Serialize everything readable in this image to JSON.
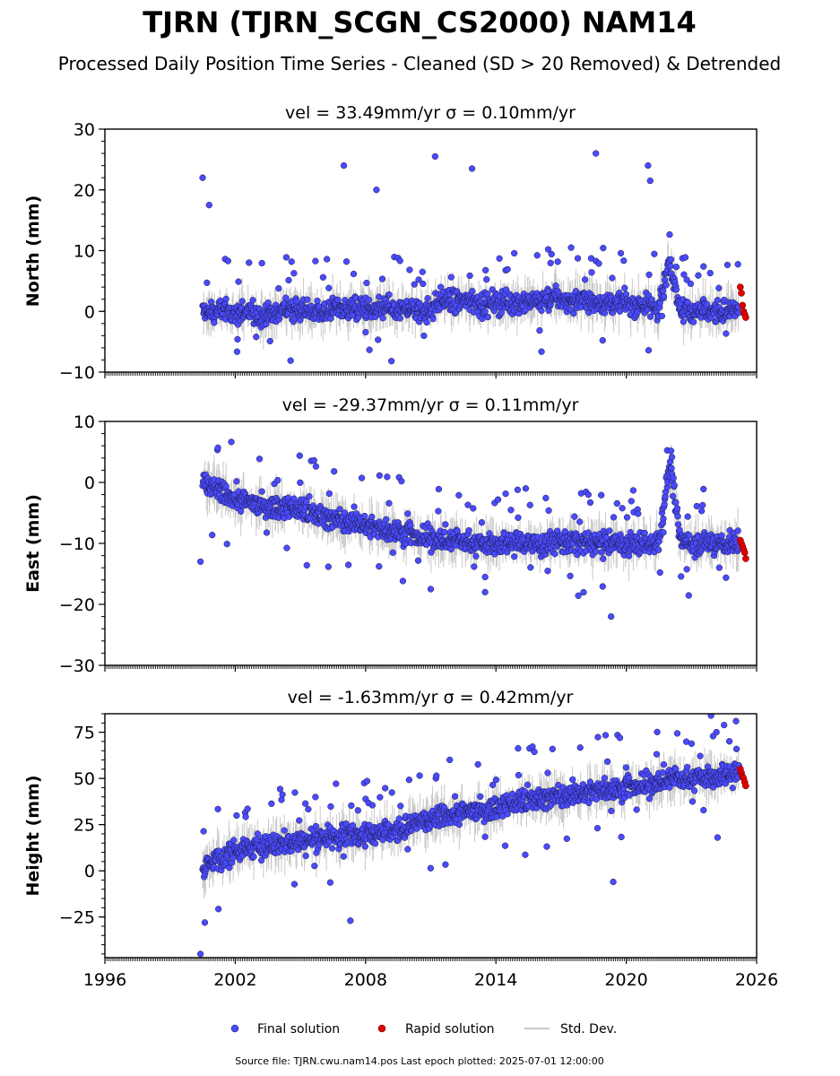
{
  "figure": {
    "title": "TJRN (TJRN_SCGN_CS2000) NAM14",
    "subtitle": "Processed Daily Position Time Series - Cleaned (SD > 20 Removed) & Detrended",
    "source_note": "Source file: TJRN.cwu.nam14.pos  Last epoch plotted: 2025-07-01 12:00:00"
  },
  "legend": {
    "placement": "bottom-center",
    "items": [
      {
        "label": "Final solution",
        "marker": "circle",
        "color": "#4a4aff"
      },
      {
        "label": "Rapid solution",
        "marker": "circle",
        "color": "#e00000"
      },
      {
        "label": "Std. Dev.",
        "marker": "line",
        "color": "#c8c8c8"
      }
    ]
  },
  "colors": {
    "final": "#4a4aff",
    "rapid": "#e00000",
    "stddev": "#c8c8c8",
    "edge": "#1a1a40"
  },
  "chart_data": [
    {
      "type": "scatter",
      "title": "vel = 33.49mm/yr   σ = 0.10mm/yr",
      "ylabel": "North (mm)",
      "xlim": [
        1996,
        2026
      ],
      "ylim": [
        -10,
        30
      ],
      "yticks": [
        -10,
        0,
        10,
        20,
        30
      ],
      "xticks": [
        1996,
        2002,
        2008,
        2014,
        2020,
        2026
      ],
      "show_xtick_labels": false,
      "grid": false,
      "series": [
        {
          "name": "Final solution",
          "x": [
            2000.5,
            2001.0,
            2001.5,
            2002.0,
            2002.5,
            2003.0,
            2003.5,
            2004.0,
            2004.5,
            2005.0,
            2005.5,
            2006.0,
            2006.5,
            2007.0,
            2007.5,
            2008.0,
            2008.5,
            2009.0,
            2009.5,
            2010.0,
            2010.5,
            2011.0,
            2011.5,
            2012.0,
            2012.5,
            2013.0,
            2013.5,
            2014.0,
            2014.5,
            2015.0,
            2015.5,
            2016.0,
            2016.5,
            2017.0,
            2017.5,
            2018.0,
            2018.5,
            2019.0,
            2019.5,
            2020.0,
            2020.5,
            2021.0,
            2021.5,
            2022.0,
            2022.5,
            2023.0,
            2023.5,
            2024.0,
            2024.5,
            2025.0
          ],
          "y": [
            0.0,
            -0.5,
            0.5,
            -0.5,
            0.0,
            -0.5,
            -0.5,
            0.0,
            0.5,
            0.0,
            0.0,
            0.0,
            0.5,
            0.5,
            0.5,
            0.5,
            0.0,
            0.5,
            0.0,
            0.5,
            0.0,
            0.5,
            2.0,
            1.5,
            1.5,
            1.5,
            1.0,
            1.5,
            1.5,
            1.5,
            1.5,
            2.0,
            2.0,
            2.0,
            1.5,
            2.0,
            1.5,
            1.5,
            1.0,
            1.5,
            1.0,
            1.0,
            0.5,
            8.0,
            0.5,
            0.0,
            0.5,
            0.0,
            0.0,
            0.0
          ]
        },
        {
          "name": "Rapid solution",
          "x": [
            2025.25,
            2025.3,
            2025.35,
            2025.4,
            2025.45,
            2025.5
          ],
          "y": [
            4.0,
            3.0,
            1.0,
            0.0,
            -0.5,
            -1.0
          ]
        }
      ],
      "outliers": {
        "x": [
          2000.5,
          2000.8,
          2007.0,
          2008.5,
          2011.2,
          2012.9,
          2018.6,
          2021.0,
          2021.1
        ],
        "y": [
          22.0,
          17.5,
          24.0,
          20.0,
          25.5,
          23.5,
          26.0,
          24.0,
          21.5
        ]
      }
    },
    {
      "type": "scatter",
      "title": "vel = -29.37mm/yr   σ = 0.11mm/yr",
      "ylabel": "East (mm)",
      "xlim": [
        1996,
        2026
      ],
      "ylim": [
        -30,
        10
      ],
      "yticks": [
        -30,
        -20,
        -10,
        0,
        10
      ],
      "xticks": [
        1996,
        2002,
        2008,
        2014,
        2020,
        2026
      ],
      "show_xtick_labels": false,
      "grid": false,
      "series": [
        {
          "name": "Final solution",
          "x": [
            2000.5,
            2001.0,
            2001.5,
            2002.0,
            2002.5,
            2003.0,
            2003.5,
            2004.0,
            2004.5,
            2005.0,
            2005.5,
            2006.0,
            2006.5,
            2007.0,
            2007.5,
            2008.0,
            2008.5,
            2009.0,
            2009.5,
            2010.0,
            2010.5,
            2011.0,
            2011.5,
            2012.0,
            2012.5,
            2013.0,
            2013.5,
            2014.0,
            2014.5,
            2015.0,
            2015.5,
            2016.0,
            2016.5,
            2017.0,
            2017.5,
            2018.0,
            2018.5,
            2019.0,
            2019.5,
            2020.0,
            2020.5,
            2021.0,
            2021.5,
            2022.0,
            2022.5,
            2023.0,
            2023.5,
            2024.0,
            2024.5,
            2025.0
          ],
          "y": [
            0.0,
            -1.0,
            -2.0,
            -2.5,
            -3.0,
            -3.5,
            -3.5,
            -4.0,
            -4.0,
            -4.5,
            -5.0,
            -5.5,
            -6.0,
            -6.5,
            -6.5,
            -7.0,
            -7.5,
            -8.0,
            -8.0,
            -8.5,
            -9.0,
            -9.0,
            -9.5,
            -9.5,
            -9.5,
            -10.0,
            -10.0,
            -10.0,
            -10.0,
            -10.0,
            -10.0,
            -10.0,
            -10.0,
            -9.5,
            -10.0,
            -10.0,
            -10.0,
            -10.0,
            -10.0,
            -10.0,
            -10.0,
            -10.0,
            -9.5,
            3.0,
            -9.5,
            -10.0,
            -10.0,
            -10.0,
            -10.0,
            -10.0
          ]
        },
        {
          "name": "Rapid solution",
          "x": [
            2025.25,
            2025.3,
            2025.35,
            2025.4,
            2025.45,
            2025.5
          ],
          "y": [
            -9.5,
            -10.0,
            -10.5,
            -11.0,
            -11.5,
            -12.5
          ]
        }
      ],
      "outliers": {
        "x": [
          2000.4,
          2019.3,
          2011.0,
          2013.5
        ],
        "y": [
          -13.0,
          -22.0,
          -17.5,
          -18.0
        ]
      }
    },
    {
      "type": "scatter",
      "title": "vel = -1.63mm/yr   σ = 0.42mm/yr",
      "ylabel": "Height (mm)",
      "xlim": [
        1996,
        2026
      ],
      "ylim": [
        -47,
        85
      ],
      "yticks": [
        -25,
        0,
        25,
        50,
        75
      ],
      "xticks": [
        1996,
        2002,
        2008,
        2014,
        2020,
        2026
      ],
      "xticklabels": [
        "1996",
        "2002",
        "2008",
        "2014",
        "2020",
        "2026"
      ],
      "show_xtick_labels": true,
      "grid": false,
      "series": [
        {
          "name": "Final solution",
          "x": [
            2000.5,
            2001.0,
            2001.5,
            2002.0,
            2002.5,
            2003.0,
            2003.5,
            2004.0,
            2004.5,
            2005.0,
            2005.5,
            2006.0,
            2006.5,
            2007.0,
            2007.5,
            2008.0,
            2008.5,
            2009.0,
            2009.5,
            2010.0,
            2010.5,
            2011.0,
            2011.5,
            2012.0,
            2012.5,
            2013.0,
            2013.5,
            2014.0,
            2014.5,
            2015.0,
            2015.5,
            2016.0,
            2016.5,
            2017.0,
            2017.5,
            2018.0,
            2018.5,
            2019.0,
            2019.5,
            2020.0,
            2020.5,
            2021.0,
            2021.5,
            2022.0,
            2022.5,
            2023.0,
            2023.5,
            2024.0,
            2024.5,
            2025.0
          ],
          "y": [
            0.0,
            5.0,
            8.0,
            10.0,
            12.0,
            13.0,
            14.0,
            15.0,
            16.0,
            16.0,
            17.0,
            18.0,
            18.0,
            19.0,
            20.0,
            20.0,
            21.0,
            22.0,
            22.0,
            24.0,
            26.0,
            27.0,
            29.0,
            31.0,
            32.0,
            33.0,
            34.0,
            35.0,
            36.0,
            37.0,
            38.0,
            39.0,
            40.0,
            40.0,
            41.0,
            42.0,
            43.0,
            44.0,
            44.0,
            45.0,
            46.0,
            47.0,
            48.0,
            50.0,
            50.0,
            50.0,
            51.0,
            51.0,
            52.0,
            52.0
          ]
        },
        {
          "name": "Rapid solution",
          "x": [
            2025.25,
            2025.3,
            2025.35,
            2025.4,
            2025.45,
            2025.5
          ],
          "y": [
            55.0,
            53.0,
            51.0,
            50.0,
            48.0,
            46.0
          ]
        }
      ],
      "outliers": {
        "x": [
          2000.4,
          2000.6,
          2007.3,
          2019.4,
          2023.9,
          2024.2
        ],
        "y": [
          -45.0,
          -28.0,
          -27.0,
          -6.0,
          84.0,
          18.0
        ]
      }
    }
  ]
}
